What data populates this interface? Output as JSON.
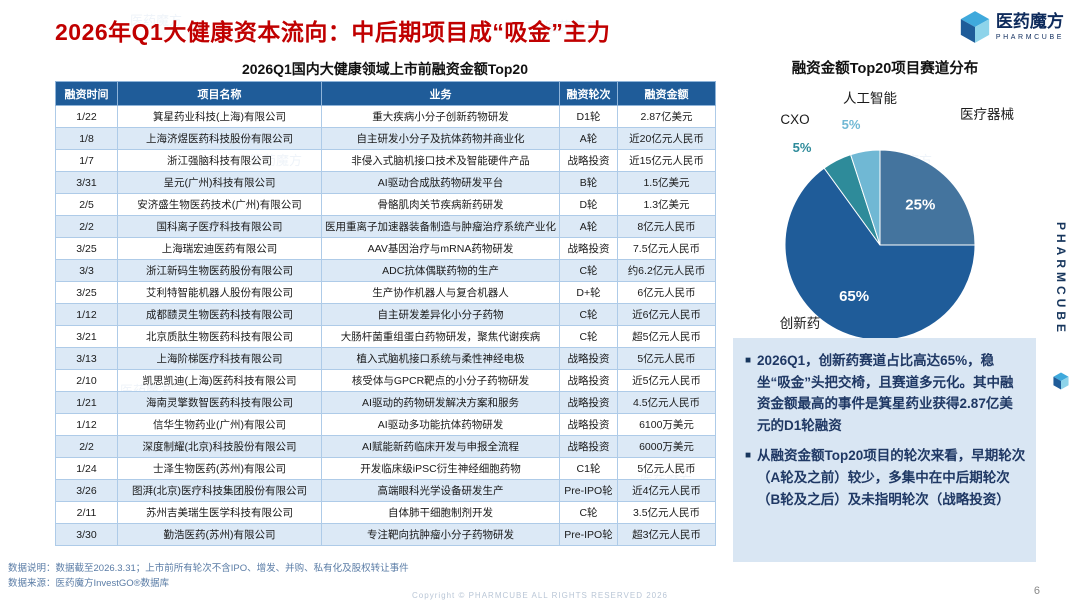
{
  "page": {
    "title": "2026年Q1大健康资本流向：中后期项目成“吸金”主力",
    "page_number": "6",
    "copyright": "Copyright © PHARMCUBE ALL RIGHTS RESERVED 2026"
  },
  "logo": {
    "name": "医药魔方",
    "sub": "PHARMCUBE"
  },
  "side_label": "PHARMCUBE",
  "watermark": "医药魔方",
  "table": {
    "title": "2026Q1国内大健康领域上市前融资金额Top20",
    "headers": [
      "融资时间",
      "项目名称",
      "业务",
      "融资轮次",
      "融资金额"
    ],
    "rows": [
      [
        "1/22",
        "箕星药业科技(上海)有限公司",
        "重大疾病小分子创新药物研发",
        "D1轮",
        "2.87亿美元"
      ],
      [
        "1/8",
        "上海济煜医药科技股份有限公司",
        "自主研发小分子及抗体药物并商业化",
        "A轮",
        "近20亿元人民币"
      ],
      [
        "1/7",
        "浙江强脑科技有限公司",
        "非侵入式脑机接口技术及智能硬件产品",
        "战略投资",
        "近15亿元人民币"
      ],
      [
        "3/31",
        "呈元(广州)科技有限公司",
        "AI驱动合成肽药物研发平台",
        "B轮",
        "1.5亿美元"
      ],
      [
        "2/5",
        "安济盛生物医药技术(广州)有限公司",
        "骨骼肌肉关节疾病新药研发",
        "D轮",
        "1.3亿美元"
      ],
      [
        "2/2",
        "国科离子医疗科技有限公司",
        "医用重离子加速器装备制造与肿瘤治疗系统产业化",
        "A轮",
        "8亿元人民币"
      ],
      [
        "3/25",
        "上海瑞宏迪医药有限公司",
        "AAV基因治疗与mRNA药物研发",
        "战略投资",
        "7.5亿元人民币"
      ],
      [
        "3/3",
        "浙江新码生物医药股份有限公司",
        "ADC抗体偶联药物的生产",
        "C轮",
        "约6.2亿元人民币"
      ],
      [
        "3/25",
        "艾利特智能机器人股份有限公司",
        "生产协作机器人与复合机器人",
        "D+轮",
        "6亿元人民币"
      ],
      [
        "1/12",
        "成都赜灵生物医药科技有限公司",
        "自主研发差异化小分子药物",
        "C轮",
        "近6亿元人民币"
      ],
      [
        "3/21",
        "北京质肽生物医药科技有限公司",
        "大肠杆菌重组蛋白药物研发，聚焦代谢疾病",
        "C轮",
        "超5亿元人民币"
      ],
      [
        "3/13",
        "上海阶梯医疗科技有限公司",
        "植入式脑机接口系统与柔性神经电极",
        "战略投资",
        "5亿元人民币"
      ],
      [
        "2/10",
        "凯思凯迪(上海)医药科技有限公司",
        "核受体与GPCR靶点的小分子药物研发",
        "战略投资",
        "近5亿元人民币"
      ],
      [
        "1/21",
        "海南灵擎数智医药科技有限公司",
        "AI驱动的药物研发解决方案和服务",
        "战略投资",
        "4.5亿元人民币"
      ],
      [
        "1/12",
        "信华生物药业(广州)有限公司",
        "AI驱动多功能抗体药物研发",
        "战略投资",
        "6100万美元"
      ],
      [
        "2/2",
        "深度制耀(北京)科技股份有限公司",
        "AI赋能新药临床开发与申报全流程",
        "战略投资",
        "6000万美元"
      ],
      [
        "1/24",
        "士泽生物医药(苏州)有限公司",
        "开发临床级iPSC衍生神经细胞药物",
        "C1轮",
        "5亿元人民币"
      ],
      [
        "3/26",
        "图湃(北京)医疗科技集团股份有限公司",
        "高端眼科光学设备研发生产",
        "Pre-IPO轮",
        "近4亿元人民币"
      ],
      [
        "2/11",
        "苏州吉美瑞生医学科技有限公司",
        "自体肺干细胞制剂开发",
        "C轮",
        "3.5亿元人民币"
      ],
      [
        "3/30",
        "勤浩医药(苏州)有限公司",
        "专注靶向抗肿瘤小分子药物研发",
        "Pre-IPO轮",
        "超3亿元人民币"
      ]
    ]
  },
  "chart": {
    "title": "融资金额Top20项目赛道分布"
  },
  "chart_data": {
    "type": "pie",
    "title": "融资金额Top20项目赛道分布",
    "direction": "clockwise",
    "start_angle_deg": 0,
    "segments": [
      {
        "label": "医疗器械",
        "value": 25,
        "color": "#44749E"
      },
      {
        "label": "创新药",
        "value": 65,
        "color": "#1F5C99"
      },
      {
        "label": "CXO",
        "value": 5,
        "color": "#2E8B9A"
      },
      {
        "label": "人工智能",
        "value": 5,
        "color": "#70B8D4"
      }
    ]
  },
  "insights": {
    "bullet_char": "■",
    "items": [
      "2026Q1，创新药赛道占比高达65%，稳坐“吸金”头把交椅，且赛道多元化。其中融资金额最高的事件是箕星药业获得2.87亿美元的D1轮融资",
      "从融资金额Top20项目的轮次来看，早期轮次（A轮及之前）较少，多集中在中后期轮次（B轮及之后）及未指明轮次（战略投资）"
    ]
  },
  "footnotes": [
    "数据说明：数据截至2026.3.31；上市前所有轮次不含IPO、增发、并购、私有化及股权转让事件",
    "数据来源：医药魔方InvestGO®数据库"
  ]
}
